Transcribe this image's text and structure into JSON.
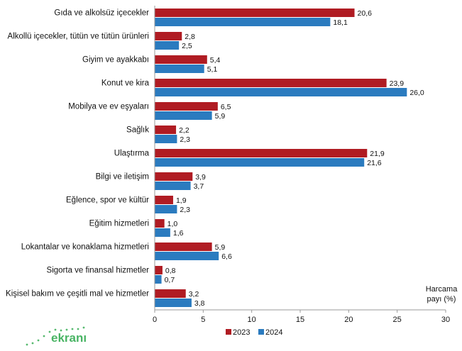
{
  "chart_data": {
    "type": "bar",
    "orientation": "horizontal",
    "categories": [
      "Gıda ve alkolsüz içecekler",
      "Alkollü içecekler, tütün ve tütün ürünleri",
      "Giyim ve ayakkabı",
      "Konut ve kira",
      "Mobilya ve ev eşyaları",
      "Sağlık",
      "Ulaştırma",
      "Bilgi ve iletişim",
      "Eğlence, spor ve kültür",
      "Eğitim hizmetleri",
      "Lokantalar ve konaklama hizmetleri",
      "Sigorta ve finansal hizmetler",
      "Kişisel bakım ve çeşitli mal ve hizmetler"
    ],
    "series": [
      {
        "name": "2023",
        "color": "#b01c23",
        "values": [
          20.6,
          2.8,
          5.4,
          23.9,
          6.5,
          2.2,
          21.9,
          3.9,
          1.9,
          1.0,
          5.9,
          0.8,
          3.2
        ],
        "labels": [
          "20,6",
          "2,8",
          "5,4",
          "23,9",
          "6,5",
          "2,2",
          "21,9",
          "3,9",
          "1,9",
          "1,0",
          "5,9",
          "0,8",
          "3,2"
        ]
      },
      {
        "name": "2024",
        "color": "#2b7bbf",
        "values": [
          18.1,
          2.5,
          5.1,
          26.0,
          5.9,
          2.3,
          21.6,
          3.7,
          2.3,
          1.6,
          6.6,
          0.7,
          3.8
        ],
        "labels": [
          "18,1",
          "2,5",
          "5,1",
          "26,0",
          "5,9",
          "2,3",
          "21,6",
          "3,7",
          "2,3",
          "1,6",
          "6,6",
          "0,7",
          "3,8"
        ]
      }
    ],
    "xlim": [
      0,
      30
    ],
    "xticks": [
      0,
      5,
      10,
      15,
      20,
      25,
      30
    ],
    "xlabel_line1": "Harcama",
    "xlabel_line2": "payı  (%)",
    "grid": false,
    "legend_position": "bottom"
  },
  "watermark": {
    "text": "ekranı",
    "color": "#2aa84a"
  }
}
